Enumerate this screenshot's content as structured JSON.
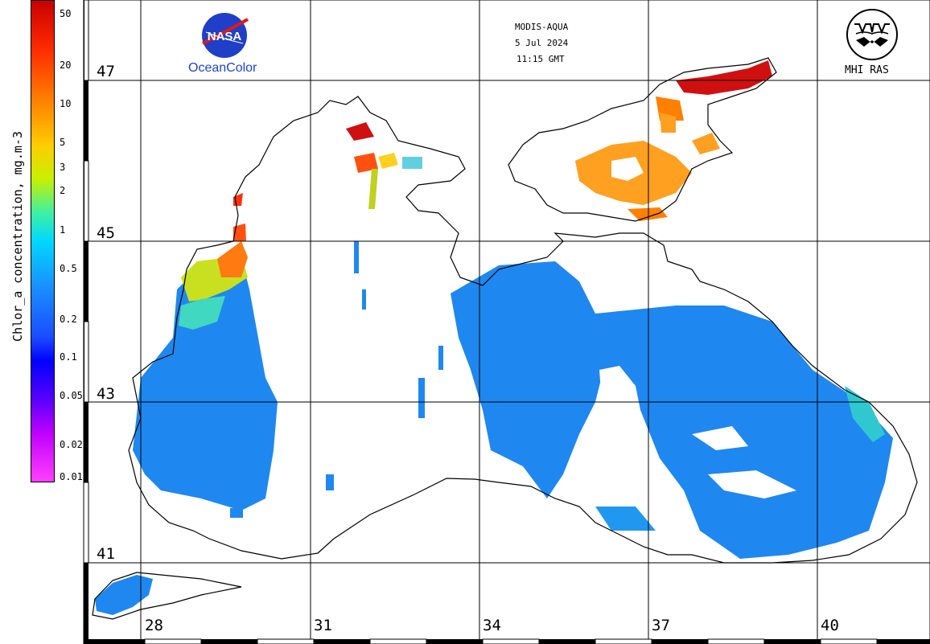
{
  "colorbar": {
    "title": "Chlor_a concentration, mg.m-3",
    "ticks": [
      "50",
      "20",
      "10",
      "5",
      "3",
      "2",
      "1",
      "0.5",
      "0.2",
      "0.1",
      "0.05",
      "0.02",
      "0.01"
    ]
  },
  "latitudes": [
    "47",
    "45",
    "43",
    "41"
  ],
  "longitudes": [
    "28",
    "31",
    "34",
    "37",
    "40"
  ],
  "satellite": {
    "sensor": "MODIS-AQUA",
    "date": "5 Jul 2024",
    "time": "11:15 GMT"
  },
  "logos": {
    "nasa": "NASA",
    "oceancolor": "OceanColor",
    "mhi": "MHI RAS"
  },
  "colors": {
    "land": "#ffffff",
    "coast": "#000000",
    "high_chl": "#d01010",
    "mid_chl": "#ffa020",
    "low_chl": "#1e88f0",
    "nasa_blue": "#1f44cc"
  }
}
